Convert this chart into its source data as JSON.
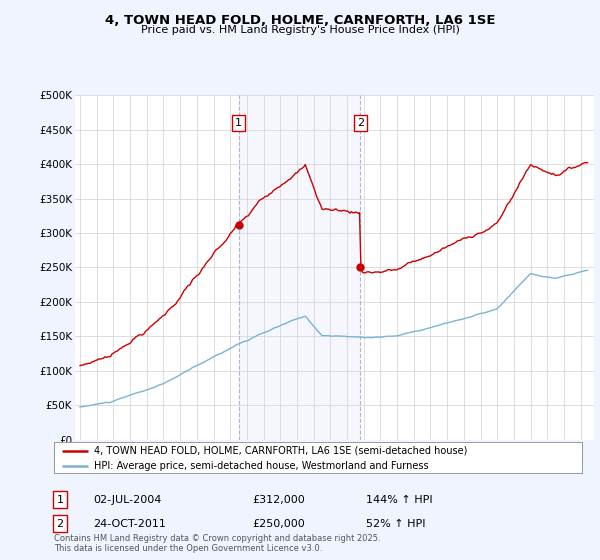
{
  "title1": "4, TOWN HEAD FOLD, HOLME, CARNFORTH, LA6 1SE",
  "title2": "Price paid vs. HM Land Registry's House Price Index (HPI)",
  "legend_line1": "4, TOWN HEAD FOLD, HOLME, CARNFORTH, LA6 1SE (semi-detached house)",
  "legend_line2": "HPI: Average price, semi-detached house, Westmorland and Furness",
  "annotation1_label": "1",
  "annotation1_date": "02-JUL-2004",
  "annotation1_price": "£312,000",
  "annotation1_hpi": "144% ↑ HPI",
  "annotation2_label": "2",
  "annotation2_date": "24-OCT-2011",
  "annotation2_price": "£250,000",
  "annotation2_hpi": "52% ↑ HPI",
  "footer": "Contains HM Land Registry data © Crown copyright and database right 2025.\nThis data is licensed under the Open Government Licence v3.0.",
  "purchase1_year": 2004.5,
  "purchase1_price": 312000,
  "purchase2_year": 2011.8,
  "purchase2_price": 250000,
  "hpi_color": "#7ab3d4",
  "price_color": "#cc0000",
  "background_color": "#f0f4ff",
  "plot_bg": "#ffffff",
  "ylim": [
    0,
    500000
  ],
  "xlim_start": 1994.7,
  "xlim_end": 2025.8
}
